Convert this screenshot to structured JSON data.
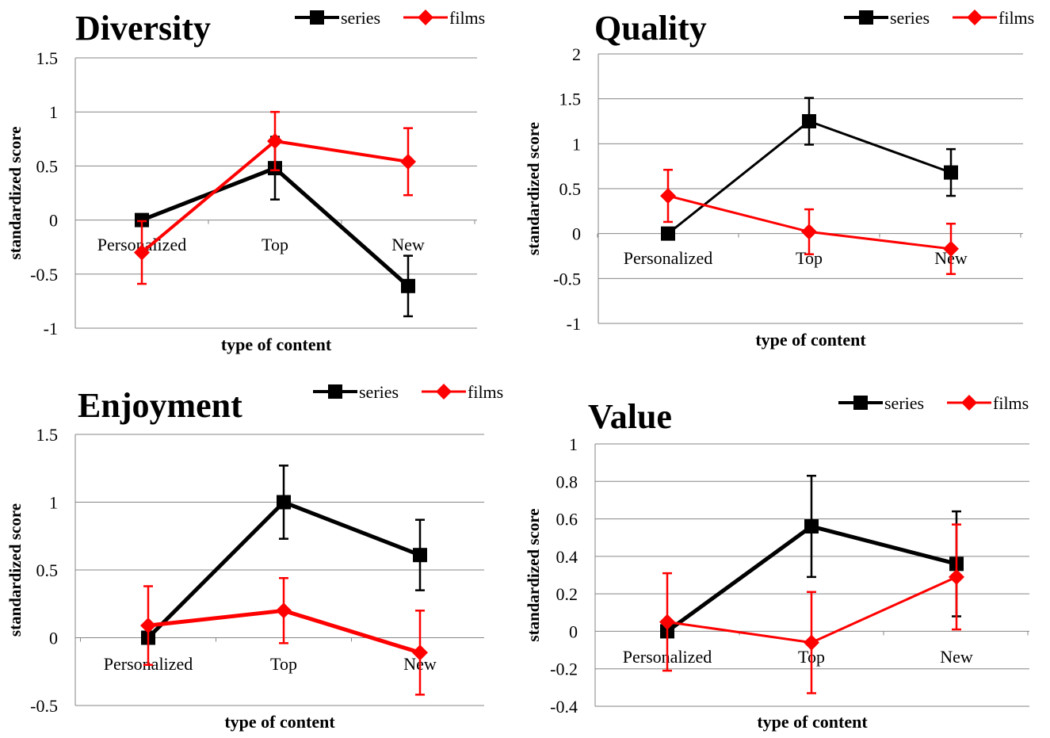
{
  "chart_data": [
    {
      "type": "line",
      "title": "Diversity",
      "xlabel": "type of content",
      "ylabel": "standardized score",
      "categories": [
        "Personalized",
        "Top",
        "New"
      ],
      "ylim": [
        -1,
        1.5
      ],
      "yticks": [
        -1,
        -0.5,
        0,
        0.5,
        1,
        1.5
      ],
      "ytick_labels": [
        "-1",
        "-0.5",
        "0",
        "0.5",
        "1",
        "1.5"
      ],
      "grid": true,
      "legend": "top-right",
      "series": [
        {
          "name": "series",
          "color": "#000000",
          "marker": "square",
          "values": [
            0,
            0.48,
            -0.61
          ],
          "errors": [
            null,
            0.29,
            0.28
          ]
        },
        {
          "name": "films",
          "color": "#ff0000",
          "marker": "diamond",
          "values": [
            -0.3,
            0.73,
            0.54
          ],
          "errors": [
            0.29,
            0.27,
            0.31
          ]
        }
      ]
    },
    {
      "type": "line",
      "title": "Quality",
      "xlabel": "type of content",
      "ylabel": "standardized score",
      "categories": [
        "Personalized",
        "Top",
        "New"
      ],
      "ylim": [
        -1,
        2
      ],
      "yticks": [
        -1,
        -0.5,
        0,
        0.5,
        1,
        1.5,
        2
      ],
      "ytick_labels": [
        "-1",
        "-0.5",
        "0",
        "0.5",
        "1",
        "1.5",
        "2"
      ],
      "grid": true,
      "legend": "top-right",
      "series": [
        {
          "name": "series",
          "color": "#000000",
          "marker": "square",
          "values": [
            0,
            1.25,
            0.68
          ],
          "errors": [
            null,
            0.26,
            0.26
          ]
        },
        {
          "name": "films",
          "color": "#ff0000",
          "marker": "diamond",
          "values": [
            0.42,
            0.02,
            -0.17
          ],
          "errors": [
            0.29,
            0.25,
            0.28
          ]
        }
      ]
    },
    {
      "type": "line",
      "title": "Enjoyment",
      "xlabel": "type of content",
      "ylabel": "standardized score",
      "categories": [
        "Personalized",
        "Top",
        "New"
      ],
      "ylim": [
        -0.5,
        1.5
      ],
      "yticks": [
        -0.5,
        0,
        0.5,
        1,
        1.5
      ],
      "ytick_labels": [
        "-0.5",
        "0",
        "0.5",
        "1",
        "1.5"
      ],
      "grid": true,
      "legend": "top-right",
      "series": [
        {
          "name": "series",
          "color": "#000000",
          "marker": "square",
          "values": [
            0,
            1.0,
            0.61
          ],
          "errors": [
            null,
            0.27,
            0.26
          ]
        },
        {
          "name": "films",
          "color": "#ff0000",
          "marker": "diamond",
          "values": [
            0.09,
            0.2,
            -0.11
          ],
          "errors": [
            0.29,
            0.24,
            0.31
          ]
        }
      ]
    },
    {
      "type": "line",
      "title": "Value",
      "xlabel": "type of content",
      "ylabel": "standardized score",
      "categories": [
        "Personalized",
        "Top",
        "New"
      ],
      "ylim": [
        -0.4,
        1
      ],
      "yticks": [
        -0.4,
        -0.2,
        0,
        0.2,
        0.4,
        0.6,
        0.8,
        1
      ],
      "ytick_labels": [
        "-0.4",
        "-0.2",
        "0",
        "0.2",
        "0.4",
        "0.6",
        "0.8",
        "1"
      ],
      "grid": true,
      "legend": "top-right",
      "series": [
        {
          "name": "series",
          "color": "#000000",
          "marker": "square",
          "values": [
            0,
            0.56,
            0.36
          ],
          "errors": [
            null,
            0.27,
            0.28
          ]
        },
        {
          "name": "films",
          "color": "#ff0000",
          "marker": "diamond",
          "values": [
            0.05,
            -0.06,
            0.29
          ],
          "errors": [
            0.26,
            0.27,
            0.28
          ]
        }
      ]
    }
  ]
}
